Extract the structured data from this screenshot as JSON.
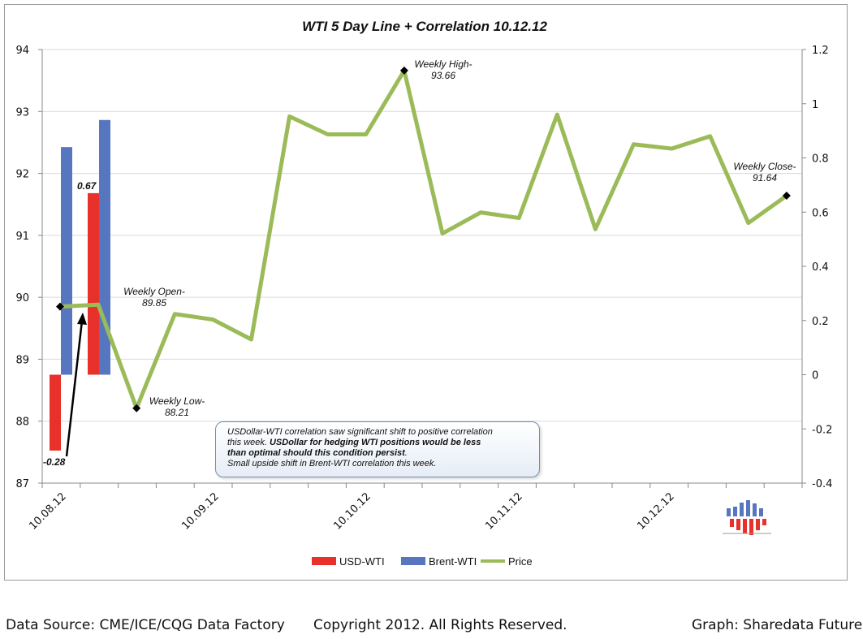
{
  "chart_data": {
    "type": "bar+line",
    "title": "WTI 5 Day Line + Correlation 10.12.12",
    "y_left": {
      "ylim": [
        87,
        94
      ],
      "ticks": [
        "87",
        "88",
        "89",
        "90",
        "91",
        "92",
        "93",
        "94"
      ]
    },
    "y_right": {
      "ylim": [
        -0.4,
        1.2
      ],
      "ticks": [
        "-0.4",
        "-0.2",
        "0",
        "0.2",
        "0.4",
        "0.6",
        "0.8",
        "1",
        "1.2"
      ]
    },
    "x_tick_labels": [
      "10.08.12",
      "10.09.12",
      "10.10.12",
      "10.11.12",
      "10.12.12"
    ],
    "grid": true,
    "legend_position": "bottom",
    "series": [
      {
        "name": "USD-WTI",
        "type": "bar",
        "axis": "right",
        "color": "#e8312a",
        "values": [
          -0.28,
          0.67
        ],
        "labels": [
          "-0.28",
          "0.67"
        ]
      },
      {
        "name": "Brent-WTI",
        "type": "bar",
        "axis": "right",
        "color": "#5677c0",
        "values": [
          0.84,
          0.94
        ]
      },
      {
        "name": "Price",
        "type": "line",
        "axis": "left",
        "color": "#9bbb59",
        "values": [
          89.85,
          89.88,
          88.21,
          89.73,
          89.64,
          89.32,
          92.92,
          92.63,
          92.63,
          93.66,
          91.03,
          91.37,
          91.28,
          92.95,
          91.1,
          92.47,
          92.4,
          92.6,
          91.2,
          91.64
        ]
      }
    ],
    "annotations": [
      {
        "title": "Weekly Open-",
        "value": "89.85"
      },
      {
        "title": "Weekly Low-",
        "value": "88.21"
      },
      {
        "title": "Weekly High-",
        "value": "93.66"
      },
      {
        "title": "Weekly Close-",
        "value": "91.64"
      }
    ],
    "note": {
      "line1": "USDollar-WTI correlation saw significant shift to positive correlation",
      "line2a": "this week. ",
      "line2b": "USDollar for hedging WTI positions would be less",
      "line3b": "than optimal should this condition persist",
      "line3c": ".",
      "line4": "Small upside shift in Brent-WTI correlation this week."
    }
  },
  "footer": {
    "source": "Data Source: CME/ICE/CQG Data Factory",
    "copyright": "Copyright 2012. All Rights Reserved.",
    "credit": "Graph: Sharedata Futures"
  },
  "logo": {
    "name": "sharedata-logo-icon"
  }
}
